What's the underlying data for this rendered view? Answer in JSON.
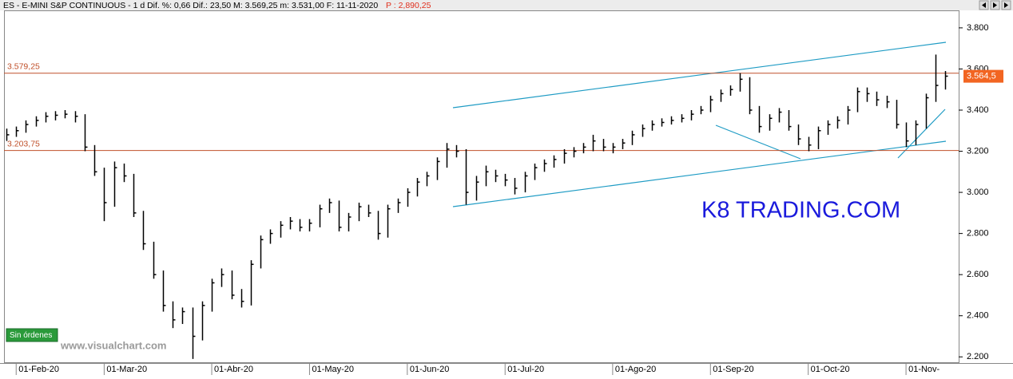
{
  "chart_data": {
    "type": "ohlc",
    "info": "ES - E-MINI S&P CONTINUOUS - 1 d  Dif. %: 0,66  Dif.: 23,50  M: 3.569,25  m: 3.531,00  F: 11-11-2020",
    "info_price": "P : 2,890,25",
    "watermark": "K8 TRADING.COM",
    "site": "www.visualchart.com",
    "status": "Sin órdenes",
    "color": "#000000",
    "categories": [
      null,
      "01-Feb-20",
      null,
      null,
      null,
      null,
      null,
      null,
      null,
      null,
      "01-Mar-20",
      null,
      null,
      null,
      null,
      null,
      null,
      null,
      null,
      null,
      null,
      "01-Abr-20",
      null,
      null,
      null,
      null,
      null,
      null,
      null,
      null,
      null,
      "01-May-20",
      null,
      null,
      null,
      null,
      null,
      null,
      null,
      null,
      null,
      "01-Jun-20",
      null,
      null,
      null,
      null,
      null,
      null,
      null,
      null,
      null,
      "01-Jul-20",
      null,
      null,
      null,
      null,
      null,
      null,
      null,
      null,
      null,
      null,
      "01-Ago-20",
      null,
      null,
      null,
      null,
      null,
      null,
      null,
      null,
      null,
      "01-Sep-20",
      null,
      null,
      null,
      null,
      null,
      null,
      null,
      null,
      null,
      "01-Oct-20",
      null,
      null,
      null,
      null,
      null,
      null,
      null,
      null,
      null,
      "01-Nov-",
      null,
      null,
      null,
      null
    ],
    "high": [
      3310,
      3320,
      3350,
      3370,
      3390,
      3395,
      3400,
      3395,
      3380,
      3230,
      3120,
      3150,
      3140,
      3090,
      2910,
      2760,
      2620,
      2470,
      2440,
      2440,
      2470,
      2580,
      2630,
      2620,
      2530,
      2670,
      2790,
      2820,
      2860,
      2880,
      2870,
      2870,
      2940,
      2970,
      2960,
      2900,
      2950,
      2940,
      2910,
      2940,
      2970,
      3020,
      3070,
      3100,
      3170,
      3240,
      3230,
      3210,
      3080,
      3130,
      3110,
      3090,
      3070,
      3100,
      3140,
      3160,
      3180,
      3210,
      3220,
      3240,
      3280,
      3260,
      3240,
      3260,
      3300,
      3330,
      3350,
      3360,
      3370,
      3380,
      3400,
      3420,
      3470,
      3500,
      3520,
      3580,
      3560,
      3420,
      3380,
      3410,
      3400,
      3330,
      3270,
      3320,
      3350,
      3370,
      3420,
      3510,
      3510,
      3490,
      3470,
      3450,
      3340,
      3350,
      3480,
      3670,
      3590
    ],
    "low": [
      3250,
      3270,
      3290,
      3320,
      3340,
      3350,
      3360,
      3340,
      3200,
      3080,
      2860,
      2930,
      3050,
      2880,
      2720,
      2580,
      2420,
      2340,
      2360,
      2190,
      2280,
      2420,
      2540,
      2480,
      2440,
      2450,
      2630,
      2750,
      2780,
      2820,
      2810,
      2810,
      2830,
      2900,
      2810,
      2810,
      2860,
      2880,
      2770,
      2780,
      2900,
      2930,
      2980,
      3030,
      3060,
      3120,
      3170,
      2940,
      2960,
      3030,
      3050,
      3030,
      2990,
      3000,
      3060,
      3100,
      3120,
      3140,
      3170,
      3190,
      3200,
      3200,
      3190,
      3210,
      3230,
      3270,
      3300,
      3320,
      3330,
      3340,
      3350,
      3380,
      3390,
      3440,
      3470,
      3490,
      3380,
      3290,
      3300,
      3340,
      3300,
      3230,
      3200,
      3210,
      3280,
      3310,
      3330,
      3390,
      3440,
      3420,
      3410,
      3310,
      3220,
      3230,
      3310,
      3440,
      3500
    ],
    "close": [
      3280,
      3300,
      3330,
      3350,
      3370,
      3375,
      3380,
      3370,
      3220,
      3100,
      2950,
      3120,
      3080,
      2900,
      2750,
      2600,
      2450,
      2380,
      2420,
      2300,
      2450,
      2560,
      2600,
      2500,
      2470,
      2650,
      2770,
      2800,
      2840,
      2860,
      2830,
      2850,
      2920,
      2950,
      2830,
      2880,
      2930,
      2900,
      2800,
      2920,
      2950,
      3000,
      3050,
      3080,
      3150,
      3210,
      3200,
      3000,
      3050,
      3100,
      3080,
      3060,
      3020,
      3080,
      3120,
      3140,
      3160,
      3190,
      3200,
      3220,
      3250,
      3220,
      3220,
      3240,
      3280,
      3310,
      3330,
      3340,
      3350,
      3360,
      3380,
      3400,
      3450,
      3480,
      3500,
      3550,
      3400,
      3320,
      3360,
      3390,
      3320,
      3260,
      3230,
      3300,
      3330,
      3350,
      3400,
      3490,
      3480,
      3450,
      3440,
      3330,
      3250,
      3330,
      3460,
      3520,
      3565
    ],
    "levels": [
      {
        "value": 3579.25,
        "label": "3.579,25",
        "color": "#c0502a"
      },
      {
        "value": 3203.75,
        "label": "3.203,75",
        "color": "#c0502a"
      }
    ],
    "last_price": {
      "value": 3564.5,
      "label": "3.564,5",
      "color": "#f26522"
    },
    "ylim": [
      2170,
      3885
    ],
    "yticks": [
      {
        "value": 2200,
        "label": "2.200"
      },
      {
        "value": 2400,
        "label": "2.400"
      },
      {
        "value": 2600,
        "label": "2.600"
      },
      {
        "value": 2800,
        "label": "2.800"
      },
      {
        "value": 3000,
        "label": "3.000"
      },
      {
        "value": 3200,
        "label": "3.200"
      },
      {
        "value": 3400,
        "label": "3.400"
      },
      {
        "value": 3600,
        "label": "3.600"
      },
      {
        "value": 3800,
        "label": "3.800"
      }
    ]
  }
}
